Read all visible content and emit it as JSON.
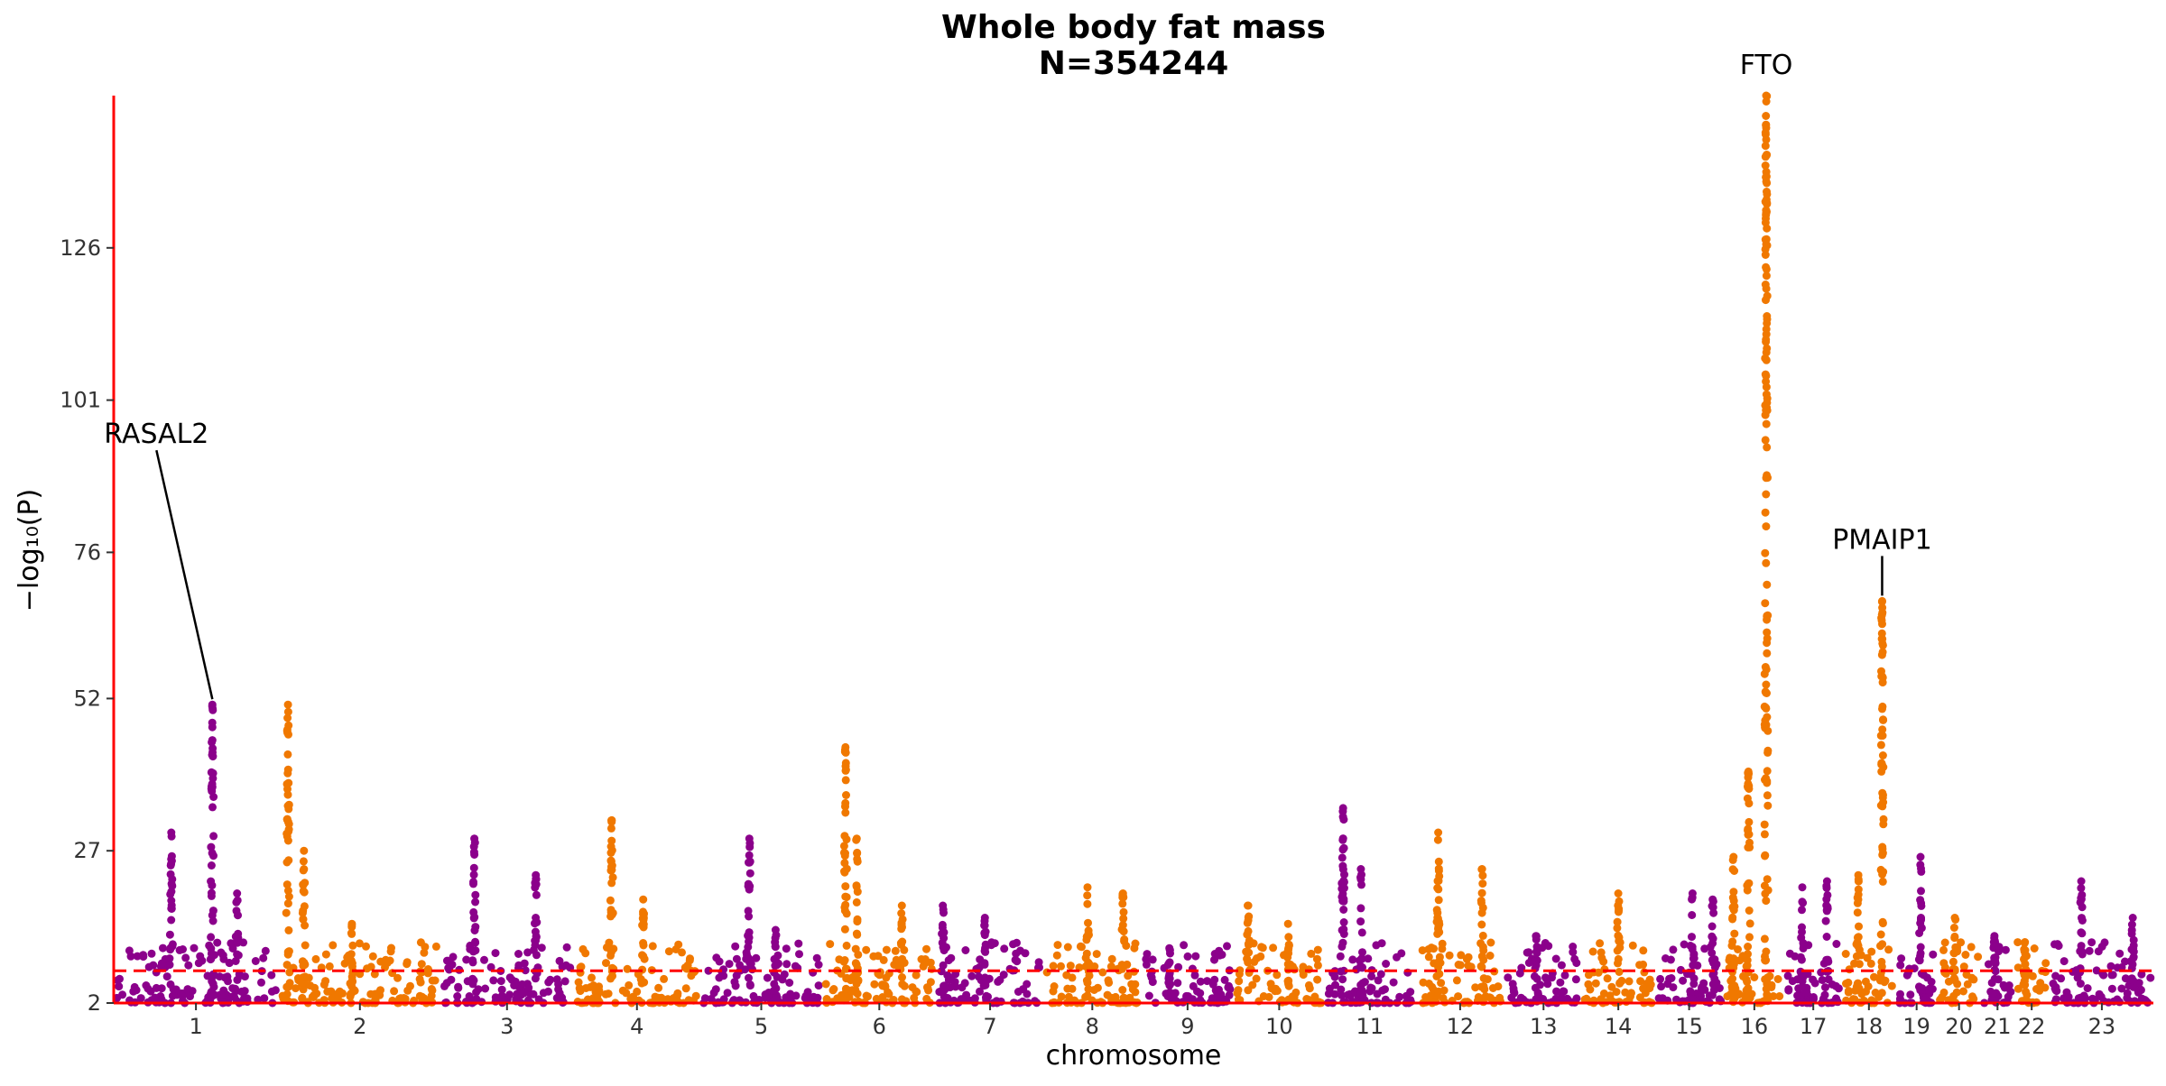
{
  "chart_data": {
    "type": "scatter",
    "title": "Whole body fat mass",
    "subtitle": "N=354244",
    "xlabel": "chromosome",
    "ylabel": "−log₁₀(P)",
    "ylim": [
      2,
      151
    ],
    "yticks": [
      2,
      27,
      52,
      76,
      101,
      126
    ],
    "significance_threshold": 7.3,
    "grid": false,
    "colors": {
      "odd": "#8b008b",
      "even": "#f07800",
      "axis": "#ff0000",
      "threshold": "#ff0000"
    },
    "chromosomes": [
      {
        "label": "1",
        "length": 249,
        "peaks": [
          [
            0.35,
            30
          ],
          [
            0.6,
            51
          ],
          [
            0.75,
            20
          ]
        ]
      },
      {
        "label": "2",
        "length": 242,
        "peaks": [
          [
            0.05,
            51
          ],
          [
            0.15,
            27
          ],
          [
            0.45,
            15
          ]
        ]
      },
      {
        "label": "3",
        "length": 198,
        "peaks": [
          [
            0.25,
            29
          ],
          [
            0.72,
            23
          ]
        ]
      },
      {
        "label": "4",
        "length": 190,
        "peaks": [
          [
            0.3,
            32
          ],
          [
            0.55,
            19
          ]
        ]
      },
      {
        "label": "5",
        "length": 181,
        "peaks": [
          [
            0.4,
            29
          ],
          [
            0.62,
            14
          ]
        ]
      },
      {
        "label": "6",
        "length": 171,
        "peaks": [
          [
            0.2,
            44
          ],
          [
            0.3,
            29
          ],
          [
            0.7,
            18
          ]
        ]
      },
      {
        "label": "7",
        "length": 159,
        "peaks": [
          [
            0.05,
            18
          ],
          [
            0.45,
            16
          ]
        ]
      },
      {
        "label": "8",
        "length": 145,
        "peaks": [
          [
            0.45,
            21
          ],
          [
            0.82,
            20
          ]
        ]
      },
      {
        "label": "9",
        "length": 138,
        "peaks": [
          [
            0.3,
            11
          ]
        ]
      },
      {
        "label": "10",
        "length": 134,
        "peaks": [
          [
            0.15,
            18
          ],
          [
            0.6,
            15
          ]
        ]
      },
      {
        "label": "11",
        "length": 135,
        "peaks": [
          [
            0.2,
            34
          ],
          [
            0.4,
            24
          ]
        ]
      },
      {
        "label": "12",
        "length": 133,
        "peaks": [
          [
            0.25,
            30
          ],
          [
            0.75,
            24
          ]
        ]
      },
      {
        "label": "13",
        "length": 114,
        "peaks": [
          [
            0.4,
            13
          ]
        ]
      },
      {
        "label": "14",
        "length": 107,
        "peaks": [
          [
            0.5,
            20
          ]
        ]
      },
      {
        "label": "15",
        "length": 102,
        "peaks": [
          [
            0.55,
            20
          ],
          [
            0.85,
            19
          ]
        ]
      },
      {
        "label": "16",
        "length": 90,
        "peaks": [
          [
            0.15,
            26
          ],
          [
            0.4,
            40
          ],
          [
            0.7,
            151
          ]
        ]
      },
      {
        "label": "17",
        "length": 83,
        "peaks": [
          [
            0.3,
            21
          ],
          [
            0.75,
            22
          ]
        ]
      },
      {
        "label": "18",
        "length": 80,
        "peaks": [
          [
            0.3,
            23
          ],
          [
            0.75,
            68
          ]
        ]
      },
      {
        "label": "19",
        "length": 59,
        "peaks": [
          [
            0.6,
            26
          ]
        ]
      },
      {
        "label": "20",
        "length": 64,
        "peaks": [
          [
            0.4,
            16
          ]
        ]
      },
      {
        "label": "21",
        "length": 47,
        "peaks": [
          [
            0.4,
            13
          ]
        ]
      },
      {
        "label": "22",
        "length": 51,
        "peaks": [
          [
            0.3,
            12
          ]
        ]
      },
      {
        "label": "23",
        "length": 156,
        "peaks": [
          [
            0.3,
            22
          ],
          [
            0.8,
            16
          ]
        ]
      }
    ],
    "annotations": [
      {
        "text": "RASAL2",
        "chromosome": "1",
        "position": 0.6,
        "y": 51
      },
      {
        "text": "FTO",
        "chromosome": "16",
        "position": 0.7,
        "y": 151
      },
      {
        "text": "PMAIP1",
        "chromosome": "18",
        "position": 0.75,
        "y": 68
      }
    ]
  }
}
